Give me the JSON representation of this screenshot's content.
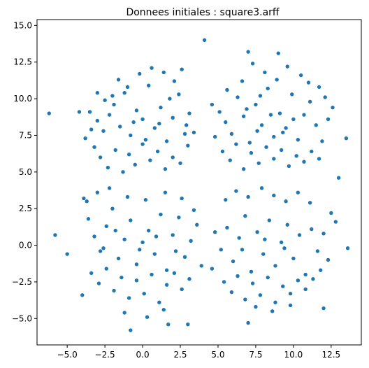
{
  "chart_data": {
    "type": "scatter",
    "title": "Donnees initiales : square3.arff",
    "xlabel": "",
    "ylabel": "",
    "xlim": [
      -7.0,
      14.5
    ],
    "ylim": [
      -6.8,
      15.4
    ],
    "xticks": [
      -5.0,
      -2.5,
      0.0,
      2.5,
      5.0,
      7.5,
      10.0,
      12.5
    ],
    "xtick_labels": [
      "−5.0",
      "−2.5",
      "0.0",
      "2.5",
      "5.0",
      "7.5",
      "10.0",
      "12.5"
    ],
    "yticks": [
      -5.0,
      -2.5,
      0.0,
      2.5,
      5.0,
      7.5,
      10.0,
      12.5,
      15.0
    ],
    "ytick_labels": [
      "−5.0",
      "−2.5",
      "0.0",
      "2.5",
      "5.0",
      "7.5",
      "10.0",
      "12.5",
      "15.0"
    ],
    "grid": false,
    "marker_color": "#1f77b4",
    "series": [
      {
        "points": [
          [
            -6.2,
            9.0
          ],
          [
            -5.8,
            0.7
          ],
          [
            -5.0,
            -0.6
          ],
          [
            4.1,
            14.0
          ],
          [
            7.0,
            13.2
          ],
          [
            9.0,
            13.1
          ],
          [
            13.0,
            4.6
          ],
          [
            13.6,
            -0.2
          ],
          [
            13.5,
            7.3
          ],
          [
            12.8,
            1.6
          ],
          [
            -0.8,
            -5.8
          ],
          [
            1.7,
            -5.4
          ],
          [
            3.0,
            -5.4
          ],
          [
            7.0,
            -5.3
          ],
          [
            12.0,
            -4.3
          ],
          [
            -4.0,
            -3.4
          ],
          [
            -3.9,
            3.2
          ],
          [
            -4.2,
            9.1
          ],
          [
            11.7,
            10.8
          ],
          [
            12.1,
            10.1
          ],
          [
            -3.5,
            9.1
          ],
          [
            -3.0,
            8.5
          ],
          [
            -2.6,
            7.8
          ],
          [
            -2.2,
            8.9
          ],
          [
            -1.9,
            9.6
          ],
          [
            -1.5,
            8.1
          ],
          [
            -1.2,
            10.4
          ],
          [
            -0.8,
            7.5
          ],
          [
            -0.4,
            9.2
          ],
          [
            0.0,
            8.6
          ],
          [
            0.4,
            10.9
          ],
          [
            0.8,
            8.0
          ],
          [
            1.2,
            9.4
          ],
          [
            1.6,
            7.1
          ],
          [
            2.0,
            8.7
          ],
          [
            2.4,
            10.3
          ],
          [
            2.8,
            7.6
          ],
          [
            3.1,
            9.0
          ],
          [
            -3.2,
            6.7
          ],
          [
            -2.8,
            6.0
          ],
          [
            -2.3,
            5.3
          ],
          [
            -1.8,
            6.5
          ],
          [
            -1.3,
            5.0
          ],
          [
            -0.9,
            6.2
          ],
          [
            -0.5,
            5.5
          ],
          [
            0.0,
            6.9
          ],
          [
            0.5,
            5.8
          ],
          [
            1.0,
            6.4
          ],
          [
            1.5,
            5.2
          ],
          [
            2.0,
            6.0
          ],
          [
            2.5,
            5.6
          ],
          [
            3.0,
            6.8
          ],
          [
            -3.8,
            7.3
          ],
          [
            -3.4,
            7.9
          ],
          [
            -1.6,
            11.3
          ],
          [
            -0.2,
            11.7
          ],
          [
            1.4,
            11.8
          ],
          [
            2.1,
            11.2
          ],
          [
            2.6,
            12.0
          ],
          [
            0.6,
            12.1
          ],
          [
            -2.0,
            10.2
          ],
          [
            -1.0,
            10.8
          ],
          [
            1.8,
            10.0
          ],
          [
            2.9,
            8.2
          ],
          [
            3.4,
            7.7
          ],
          [
            -0.6,
            8.4
          ],
          [
            0.2,
            7.2
          ],
          [
            1.1,
            8.3
          ],
          [
            -2.5,
            9.9
          ],
          [
            -3.0,
            10.4
          ],
          [
            5.1,
            9.1
          ],
          [
            5.5,
            8.4
          ],
          [
            5.9,
            7.6
          ],
          [
            6.3,
            10.1
          ],
          [
            6.7,
            8.8
          ],
          [
            7.1,
            7.0
          ],
          [
            7.5,
            9.6
          ],
          [
            7.9,
            8.2
          ],
          [
            8.3,
            10.7
          ],
          [
            8.7,
            7.4
          ],
          [
            9.1,
            9.0
          ],
          [
            9.5,
            8.0
          ],
          [
            9.9,
            10.3
          ],
          [
            10.3,
            7.2
          ],
          [
            10.7,
            8.9
          ],
          [
            11.1,
            9.8
          ],
          [
            11.5,
            8.2
          ],
          [
            11.9,
            7.1
          ],
          [
            5.3,
            6.4
          ],
          [
            5.8,
            5.8
          ],
          [
            6.2,
            6.9
          ],
          [
            6.7,
            5.2
          ],
          [
            7.2,
            6.3
          ],
          [
            7.7,
            5.6
          ],
          [
            8.2,
            6.7
          ],
          [
            8.7,
            5.9
          ],
          [
            9.2,
            6.5
          ],
          [
            9.7,
            5.4
          ],
          [
            10.2,
            6.1
          ],
          [
            10.7,
            5.7
          ],
          [
            11.2,
            6.4
          ],
          [
            11.7,
            5.9
          ],
          [
            7.3,
            12.4
          ],
          [
            8.1,
            11.8
          ],
          [
            9.6,
            12.2
          ],
          [
            10.5,
            11.6
          ],
          [
            6.6,
            11.2
          ],
          [
            11.0,
            11.1
          ],
          [
            12.3,
            8.6
          ],
          [
            12.6,
            9.4
          ],
          [
            5.6,
            10.6
          ],
          [
            4.6,
            9.6
          ],
          [
            4.8,
            7.4
          ],
          [
            8.9,
            11.3
          ],
          [
            10.0,
            8.6
          ],
          [
            7.6,
            7.8
          ],
          [
            8.5,
            8.9
          ],
          [
            9.3,
            7.7
          ],
          [
            6.9,
            9.3
          ],
          [
            7.8,
            10.2
          ],
          [
            -3.6,
            1.8
          ],
          [
            -3.2,
            0.6
          ],
          [
            -2.8,
            -0.4
          ],
          [
            -2.4,
            1.3
          ],
          [
            -2.0,
            2.5
          ],
          [
            -1.6,
            -0.9
          ],
          [
            -1.2,
            0.4
          ],
          [
            -0.8,
            1.7
          ],
          [
            -0.4,
            -1.3
          ],
          [
            0.0,
            0.2
          ],
          [
            0.4,
            1.0
          ],
          [
            0.8,
            -0.6
          ],
          [
            1.2,
            2.1
          ],
          [
            1.6,
            -1.7
          ],
          [
            2.0,
            0.7
          ],
          [
            2.4,
            1.9
          ],
          [
            2.8,
            -0.8
          ],
          [
            3.2,
            0.3
          ],
          [
            -3.4,
            -1.9
          ],
          [
            -2.9,
            -2.6
          ],
          [
            -2.4,
            -1.6
          ],
          [
            -1.9,
            -3.1
          ],
          [
            -1.4,
            -2.2
          ],
          [
            -0.9,
            -3.6
          ],
          [
            -0.4,
            -2.4
          ],
          [
            0.1,
            -3.3
          ],
          [
            0.6,
            -2.0
          ],
          [
            1.1,
            -3.9
          ],
          [
            1.6,
            -2.7
          ],
          [
            2.1,
            -1.9
          ],
          [
            2.6,
            -3.0
          ],
          [
            3.1,
            -2.3
          ],
          [
            -3.7,
            3.0
          ],
          [
            -3.0,
            3.6
          ],
          [
            -2.2,
            3.9
          ],
          [
            -1.0,
            3.3
          ],
          [
            0.2,
            3.1
          ],
          [
            1.5,
            3.6
          ],
          [
            2.6,
            3.2
          ],
          [
            3.4,
            2.4
          ],
          [
            -1.2,
            -4.6
          ],
          [
            0.3,
            -4.9
          ],
          [
            1.4,
            -4.4
          ],
          [
            -2.6,
            -0.2
          ],
          [
            -1.8,
            1.0
          ],
          [
            -0.2,
            -0.3
          ],
          [
            0.9,
            0.6
          ],
          [
            2.2,
            -0.4
          ],
          [
            3.6,
            1.4
          ],
          [
            3.9,
            -1.4
          ],
          [
            5.2,
            -0.3
          ],
          [
            5.6,
            1.2
          ],
          [
            6.0,
            -1.1
          ],
          [
            6.4,
            0.5
          ],
          [
            6.8,
            2.0
          ],
          [
            7.2,
            -1.8
          ],
          [
            7.6,
            0.9
          ],
          [
            8.0,
            -0.6
          ],
          [
            8.4,
            1.7
          ],
          [
            8.8,
            -1.4
          ],
          [
            9.2,
            0.2
          ],
          [
            9.6,
            1.4
          ],
          [
            10.0,
            -0.9
          ],
          [
            10.4,
            0.7
          ],
          [
            10.8,
            -2.0
          ],
          [
            11.2,
            1.1
          ],
          [
            11.6,
            -0.4
          ],
          [
            12.0,
            0.8
          ],
          [
            5.4,
            -2.5
          ],
          [
            5.9,
            -3.2
          ],
          [
            6.3,
            -2.1
          ],
          [
            6.8,
            -3.7
          ],
          [
            7.3,
            -2.6
          ],
          [
            7.8,
            -3.4
          ],
          [
            8.3,
            -2.2
          ],
          [
            8.8,
            -3.9
          ],
          [
            9.3,
            -2.8
          ],
          [
            9.8,
            -3.3
          ],
          [
            10.3,
            -2.4
          ],
          [
            10.8,
            -3.0
          ],
          [
            11.3,
            -2.3
          ],
          [
            11.8,
            -1.7
          ],
          [
            5.5,
            3.1
          ],
          [
            6.2,
            3.7
          ],
          [
            7.0,
            3.3
          ],
          [
            7.9,
            3.9
          ],
          [
            8.7,
            3.4
          ],
          [
            9.5,
            3.0
          ],
          [
            10.3,
            3.6
          ],
          [
            11.1,
            2.9
          ],
          [
            7.5,
            -4.2
          ],
          [
            8.6,
            -4.5
          ],
          [
            9.8,
            -4.1
          ],
          [
            4.8,
            0.9
          ],
          [
            4.6,
            -1.6
          ],
          [
            12.3,
            -1.0
          ],
          [
            12.5,
            2.2
          ],
          [
            6.6,
            -0.3
          ],
          [
            8.1,
            0.4
          ],
          [
            9.4,
            -0.2
          ]
        ]
      }
    ]
  }
}
